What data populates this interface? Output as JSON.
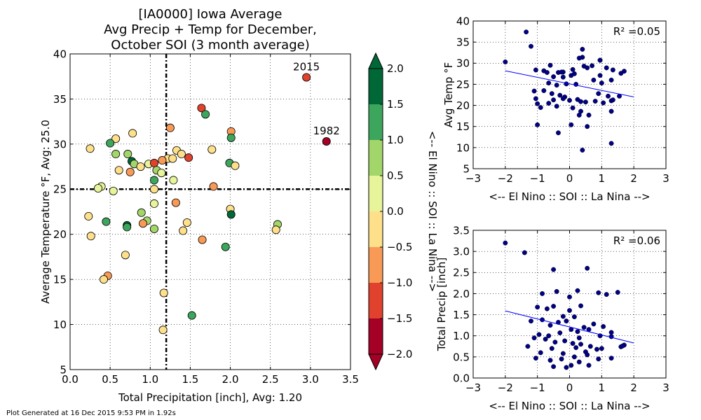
{
  "footer": "Plot Generated at 16 Dec 2015 9:53 PM in 1.92s",
  "chart_data": [
    {
      "type": "scatter",
      "title": [
        "[IA0000] Iowa Average",
        "Avg Precip + Temp for December,",
        "October SOI (3 month average)"
      ],
      "xlabel": "Total Precipitation [inch], Avg: 1.20",
      "ylabel": "Average Temperature °F, Avg: 25.0",
      "xlim": [
        0.0,
        3.5
      ],
      "ylim": [
        5,
        40
      ],
      "xticks": [
        "0.0",
        "0.5",
        "1.0",
        "1.5",
        "2.0",
        "2.5",
        "3.0",
        "3.5"
      ],
      "yticks": [
        "5",
        "10",
        "15",
        "20",
        "25",
        "30",
        "35",
        "40"
      ],
      "grid": true,
      "reference_lines": {
        "x": 1.2,
        "y": 25.0
      },
      "colorbar": {
        "label": "<-- El Nino :: SOI :: La Nina -->",
        "ticks": [
          "−2.0",
          "−1.5",
          "−1.0",
          "−0.5",
          "0.0",
          "0.5",
          "1.0",
          "1.5",
          "2.0"
        ],
        "colors": [
          "#a50026",
          "#e0422d",
          "#f89a55",
          "#fee08b",
          "#e8f49a",
          "#a3d66a",
          "#3ca65c",
          "#006837"
        ],
        "extend": "both"
      },
      "annotations": [
        {
          "text": "2015",
          "x": 2.95,
          "y": 37.4
        },
        {
          "text": "1982",
          "x": 3.2,
          "y": 30.3
        }
      ],
      "points": [
        {
          "x": 2.95,
          "y": 37.4,
          "c": "#e0422d"
        },
        {
          "x": 3.2,
          "y": 30.3,
          "c": "#a50026"
        },
        {
          "x": 1.64,
          "y": 34.0,
          "c": "#e0422d"
        },
        {
          "x": 1.69,
          "y": 33.3,
          "c": "#3ca65c"
        },
        {
          "x": 0.78,
          "y": 31.2,
          "c": "#fee08b"
        },
        {
          "x": 1.25,
          "y": 31.8,
          "c": "#f89a55"
        },
        {
          "x": 2.01,
          "y": 31.4,
          "c": "#f89a55"
        },
        {
          "x": 0.57,
          "y": 30.6,
          "c": "#fee08b"
        },
        {
          "x": 2.01,
          "y": 30.7,
          "c": "#3ca65c"
        },
        {
          "x": 0.5,
          "y": 30.1,
          "c": "#3ca65c"
        },
        {
          "x": 0.25,
          "y": 29.5,
          "c": "#fee08b"
        },
        {
          "x": 1.77,
          "y": 29.4,
          "c": "#fee08b"
        },
        {
          "x": 1.33,
          "y": 29.3,
          "c": "#fee08b"
        },
        {
          "x": 0.57,
          "y": 28.9,
          "c": "#a3d66a"
        },
        {
          "x": 0.72,
          "y": 28.9,
          "c": "#a3d66a"
        },
        {
          "x": 1.39,
          "y": 28.9,
          "c": "#fee08b"
        },
        {
          "x": 1.22,
          "y": 28.4,
          "c": "#fee08b"
        },
        {
          "x": 1.28,
          "y": 28.4,
          "c": "#fee08b"
        },
        {
          "x": 1.48,
          "y": 28.5,
          "c": "#e0422d"
        },
        {
          "x": 1.15,
          "y": 28.2,
          "c": "#f89a55"
        },
        {
          "x": 0.77,
          "y": 28.1,
          "c": "#006837"
        },
        {
          "x": 0.8,
          "y": 27.8,
          "c": "#a3d66a"
        },
        {
          "x": 0.98,
          "y": 27.8,
          "c": "#e8f49a"
        },
        {
          "x": 1.05,
          "y": 27.9,
          "c": "#e0422d"
        },
        {
          "x": 1.99,
          "y": 27.9,
          "c": "#3ca65c"
        },
        {
          "x": 0.88,
          "y": 27.5,
          "c": "#fee08b"
        },
        {
          "x": 2.06,
          "y": 27.6,
          "c": "#fee08b"
        },
        {
          "x": 0.61,
          "y": 27.1,
          "c": "#fee08b"
        },
        {
          "x": 1.08,
          "y": 27.1,
          "c": "#a3d66a"
        },
        {
          "x": 0.75,
          "y": 26.9,
          "c": "#f89a55"
        },
        {
          "x": 1.14,
          "y": 26.8,
          "c": "#e8f49a"
        },
        {
          "x": 1.05,
          "y": 26.0,
          "c": "#3ca65c"
        },
        {
          "x": 1.29,
          "y": 26.0,
          "c": "#e8f49a"
        },
        {
          "x": 0.39,
          "y": 25.3,
          "c": "#e8f49a"
        },
        {
          "x": 0.35,
          "y": 25.1,
          "c": "#e8f49a"
        },
        {
          "x": 1.05,
          "y": 25.0,
          "c": "#fee08b"
        },
        {
          "x": 0.54,
          "y": 24.8,
          "c": "#e8f49a"
        },
        {
          "x": 1.79,
          "y": 25.3,
          "c": "#f89a55"
        },
        {
          "x": 1.05,
          "y": 23.4,
          "c": "#e8f49a"
        },
        {
          "x": 1.32,
          "y": 23.5,
          "c": "#f89a55"
        },
        {
          "x": 2.0,
          "y": 22.8,
          "c": "#fee08b"
        },
        {
          "x": 0.89,
          "y": 22.4,
          "c": "#a3d66a"
        },
        {
          "x": 2.01,
          "y": 22.2,
          "c": "#006837"
        },
        {
          "x": 0.23,
          "y": 22.0,
          "c": "#fee08b"
        },
        {
          "x": 0.45,
          "y": 21.4,
          "c": "#3ca65c"
        },
        {
          "x": 0.96,
          "y": 21.5,
          "c": "#a3d66a"
        },
        {
          "x": 0.91,
          "y": 21.2,
          "c": "#f89a55"
        },
        {
          "x": 1.46,
          "y": 21.3,
          "c": "#fee08b"
        },
        {
          "x": 0.71,
          "y": 21.0,
          "c": "#006837"
        },
        {
          "x": 0.71,
          "y": 20.8,
          "c": "#3ca65c"
        },
        {
          "x": 2.59,
          "y": 21.1,
          "c": "#a3d66a"
        },
        {
          "x": 1.05,
          "y": 20.6,
          "c": "#a3d66a"
        },
        {
          "x": 1.41,
          "y": 20.4,
          "c": "#fee08b"
        },
        {
          "x": 2.57,
          "y": 20.5,
          "c": "#fee08b"
        },
        {
          "x": 0.26,
          "y": 19.8,
          "c": "#fee08b"
        },
        {
          "x": 1.65,
          "y": 19.4,
          "c": "#f89a55"
        },
        {
          "x": 1.94,
          "y": 18.6,
          "c": "#3ca65c"
        },
        {
          "x": 0.69,
          "y": 17.7,
          "c": "#fee08b"
        },
        {
          "x": 0.47,
          "y": 15.4,
          "c": "#f89a55"
        },
        {
          "x": 0.42,
          "y": 15.0,
          "c": "#fee08b"
        },
        {
          "x": 1.17,
          "y": 13.5,
          "c": "#fee08b"
        },
        {
          "x": 1.52,
          "y": 11.0,
          "c": "#3ca65c"
        },
        {
          "x": 1.16,
          "y": 9.4,
          "c": "#fee08b"
        }
      ]
    },
    {
      "type": "scatter",
      "xlabel": "<-- El Nino :: SOI :: La Nina -->",
      "ylabel": "Avg Temp °F",
      "xlim": [
        -3,
        3
      ],
      "ylim": [
        5,
        40
      ],
      "xticks": [
        "−3",
        "−2",
        "−1",
        "0",
        "1",
        "2",
        "3"
      ],
      "yticks": [
        "5",
        "10",
        "15",
        "20",
        "25",
        "30",
        "35",
        "40"
      ],
      "grid": true,
      "r2_label": "R² =0.05",
      "fit_line": {
        "x": [
          -2.0,
          2.0
        ],
        "y": [
          28.2,
          22.0
        ]
      },
      "point_color": "#00008b",
      "x": [
        -2.0,
        -1.35,
        -1.2,
        -1.05,
        -0.8,
        -0.6,
        -0.35,
        -0.2,
        0.1,
        0.4,
        0.95,
        1.3,
        1.6,
        -1.05,
        -0.7,
        -0.5,
        -0.25,
        0.05,
        0.3,
        0.55,
        0.95,
        1.15,
        1.35,
        1.7,
        -0.65,
        -0.4,
        -0.1,
        0.2,
        0.45,
        0.75,
        1.55,
        -1.1,
        -0.8,
        -0.55,
        -0.3,
        0.0,
        0.25,
        0.5,
        0.8,
        1.05,
        1.3,
        -1.0,
        -0.65,
        -0.4,
        -0.15,
        0.1,
        0.35,
        0.6,
        0.9,
        1.2,
        -0.9,
        -0.5,
        -0.2,
        0.15,
        0.4,
        0.7,
        1.0,
        1.35,
        -0.35,
        0.05,
        0.3,
        0.55,
        1.3,
        -1.0,
        -0.2,
        0.35,
        0.95,
        1.3,
        0.4
      ],
      "y": [
        30.3,
        37.4,
        34.0,
        28.4,
        28.2,
        29.5,
        27.8,
        27.9,
        28.5,
        33.3,
        30.7,
        26.0,
        27.6,
        21.6,
        27.8,
        26.8,
        27.9,
        27.1,
        31.2,
        28.9,
        27.1,
        28.9,
        28.4,
        28.1,
        25.3,
        24.8,
        25.1,
        25.0,
        29.3,
        26.0,
        22.2,
        23.4,
        23.5,
        22.8,
        22.4,
        21.2,
        21.4,
        20.8,
        21.0,
        20.6,
        21.1,
        20.4,
        20.5,
        19.8,
        22.0,
        19.4,
        18.6,
        17.7,
        22.8,
        22.2,
        19.5,
        21.3,
        26.7,
        27.5,
        31.4,
        29.4,
        25.3,
        21.3,
        13.5,
        15.4,
        17.7,
        15.0,
        11.0,
        15.4,
        21.6,
        20.9,
        30.7,
        18.6,
        9.4
      ]
    },
    {
      "type": "scatter",
      "xlabel": "<-- El Nino :: SOI :: La Nina -->",
      "ylabel": "Total Precip [inch]",
      "xlim": [
        -3,
        3
      ],
      "ylim": [
        0.0,
        3.5
      ],
      "xticks": [
        "−3",
        "−2",
        "−1",
        "0",
        "1",
        "2",
        "3"
      ],
      "yticks": [
        "0.0",
        "0.5",
        "1.0",
        "1.5",
        "2.0",
        "2.5",
        "3.0",
        "3.5"
      ],
      "grid": true,
      "r2_label": "R² =0.06",
      "fit_line": {
        "x": [
          -2.0,
          2.0
        ],
        "y": [
          1.59,
          0.83
        ]
      },
      "point_color": "#00008b",
      "x": [
        -2.0,
        -1.4,
        -0.5,
        0.55,
        -1.0,
        -0.7,
        -0.5,
        -0.2,
        0.0,
        0.35,
        0.9,
        1.15,
        1.5,
        -1.2,
        -0.85,
        -0.6,
        -0.35,
        -0.1,
        0.15,
        0.45,
        0.75,
        1.05,
        1.3,
        -0.95,
        -0.65,
        -0.3,
        0.05,
        0.25,
        0.6,
        0.95,
        1.3,
        1.7,
        -1.1,
        -0.75,
        -0.45,
        -0.15,
        0.1,
        0.35,
        0.65,
        1.0,
        1.6,
        -1.3,
        -0.9,
        -0.55,
        -0.2,
        0.2,
        0.5,
        0.85,
        -1.05,
        -0.6,
        -0.25,
        0.15,
        0.3,
        0.55,
        0.9,
        -0.85,
        -0.4,
        0.0,
        0.25,
        0.6,
        1.3,
        -0.5,
        -0.1,
        0.05,
        0.3,
        1.65
      ],
      "y": [
        3.2,
        2.97,
        2.57,
        2.6,
        1.68,
        1.64,
        1.7,
        1.46,
        1.6,
        1.71,
        2.02,
        1.98,
        2.03,
        1.35,
        1.38,
        1.25,
        1.32,
        1.35,
        1.45,
        1.2,
        1.28,
        1.22,
        1.08,
        1.03,
        1.0,
        1.07,
        1.15,
        1.1,
        1.15,
        1.0,
        0.98,
        0.78,
        0.95,
        0.92,
        0.85,
        0.88,
        0.82,
        0.8,
        0.75,
        0.7,
        0.74,
        0.75,
        0.6,
        0.7,
        0.58,
        0.72,
        0.62,
        0.68,
        0.47,
        0.42,
        0.45,
        0.5,
        0.38,
        0.55,
        0.45,
        2.0,
        2.05,
        1.92,
        2.07,
        0.3,
        0.47,
        0.27,
        0.25,
        0.3,
        0.95,
        0.76
      ]
    }
  ]
}
